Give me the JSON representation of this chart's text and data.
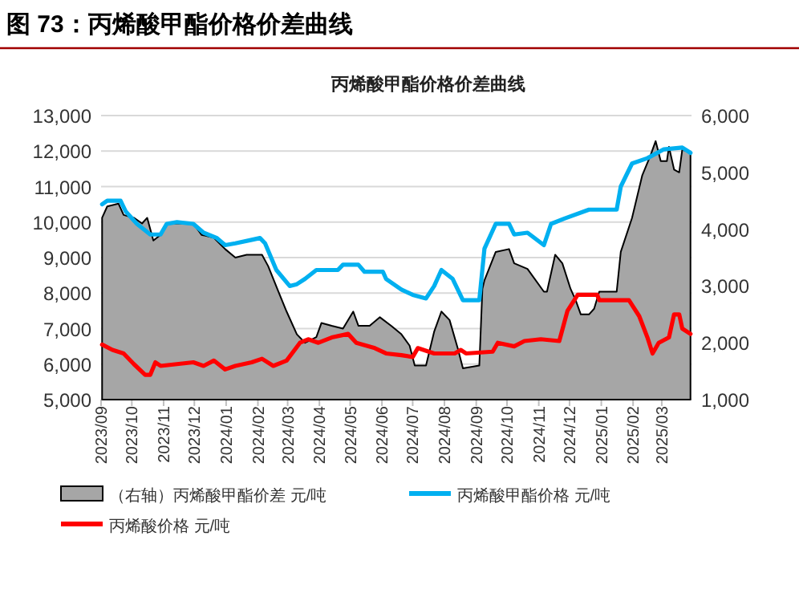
{
  "chart_data": {
    "type": "line",
    "title": "图 73：丙烯酸甲酯价格价差曲线",
    "subtitle": "丙烯酸甲酯价格价差曲线",
    "xlim": [
      "2023-09-01",
      "2025-03-30"
    ],
    "xticks": [
      {
        "value": "2023-09",
        "label": "2023/09"
      },
      {
        "value": "2023-10",
        "label": "2023/10"
      },
      {
        "value": "2023-11",
        "label": "2023/11"
      },
      {
        "value": "2023-12",
        "label": "2023/12"
      },
      {
        "value": "2024-01",
        "label": "2024/01"
      },
      {
        "value": "2024-02",
        "label": "2024/02"
      },
      {
        "value": "2024-03",
        "label": "2024/03"
      },
      {
        "value": "2024-04",
        "label": "2024/04"
      },
      {
        "value": "2024-05",
        "label": "2024/05"
      },
      {
        "value": "2024-06",
        "label": "2024/06"
      },
      {
        "value": "2024-07",
        "label": "2024/07"
      },
      {
        "value": "2024-08",
        "label": "2024/08"
      },
      {
        "value": "2024-09",
        "label": "2024/09"
      },
      {
        "value": "2024-10",
        "label": "2024/10"
      },
      {
        "value": "2024-11",
        "label": "2024/11"
      },
      {
        "value": "2024-12",
        "label": "2024/12"
      },
      {
        "value": "2025-01",
        "label": "2025/01"
      },
      {
        "value": "2025-02",
        "label": "2025/02"
      },
      {
        "value": "2025-03",
        "label": "2025/03"
      }
    ],
    "ylim": [
      5000,
      13000
    ],
    "yticks": [
      {
        "value": 5000,
        "label": "5,000"
      },
      {
        "value": 6000,
        "label": "6,000"
      },
      {
        "value": 7000,
        "label": "7,000"
      },
      {
        "value": 8000,
        "label": "8,000"
      },
      {
        "value": 9000,
        "label": "9,000"
      },
      {
        "value": 10000,
        "label": "10,000"
      },
      {
        "value": 11000,
        "label": "11,000"
      },
      {
        "value": 12000,
        "label": "12,000"
      },
      {
        "value": 13000,
        "label": "13,000"
      }
    ],
    "y2lim": [
      1000,
      6000
    ],
    "y2ticks": [
      {
        "value": 1000,
        "label": "1,000"
      },
      {
        "value": 2000,
        "label": "2,000"
      },
      {
        "value": 3000,
        "label": "3,000"
      },
      {
        "value": 4000,
        "label": "4,000"
      },
      {
        "value": 5000,
        "label": "5,000"
      },
      {
        "value": 6000,
        "label": "6,000"
      }
    ],
    "grid": "y",
    "legend": "bottom",
    "series": [
      {
        "name": "（右轴）丙烯酸甲酯价差 元/吨",
        "type": "area",
        "axis": "y2",
        "color": "#a6a6a6",
        "x": [
          "2023-09-02",
          "2023-09-07",
          "2023-09-18",
          "2023-09-23",
          "2023-10-03",
          "2023-10-11",
          "2023-10-16",
          "2023-10-22",
          "2023-10-29",
          "2023-11-04",
          "2023-11-14",
          "2023-11-30",
          "2023-12-08",
          "2023-12-20",
          "2023-12-31",
          "2024-01-10",
          "2024-01-21",
          "2024-02-05",
          "2024-02-11",
          "2024-02-21",
          "2024-02-29",
          "2024-03-10",
          "2024-03-18",
          "2024-03-29",
          "2024-04-03",
          "2024-04-13",
          "2024-04-24",
          "2024-05-04",
          "2024-05-09",
          "2024-05-20",
          "2024-05-30",
          "2024-06-10",
          "2024-06-20",
          "2024-06-28",
          "2024-07-03",
          "2024-07-14",
          "2024-07-22",
          "2024-07-29",
          "2024-08-06",
          "2024-08-14",
          "2024-08-19",
          "2024-09-04",
          "2024-09-07",
          "2024-09-09",
          "2024-09-20",
          "2024-10-03",
          "2024-10-08",
          "2024-10-21",
          "2024-11-06",
          "2024-11-09",
          "2024-11-17",
          "2024-11-24",
          "2024-12-02",
          "2024-12-07",
          "2024-12-12",
          "2024-12-20",
          "2024-12-25",
          "2024-12-30",
          "2025-01-16",
          "2025-01-20",
          "2025-01-31",
          "2025-02-10",
          "2025-02-18",
          "2025-02-23",
          "2025-02-28",
          "2025-03-06",
          "2025-03-08",
          "2025-03-13",
          "2025-03-18",
          "2025-03-21",
          "2025-03-29"
        ],
        "values": [
          4200,
          4400,
          4450,
          4250,
          4200,
          4100,
          4200,
          3800,
          3900,
          4100,
          4100,
          4100,
          3900,
          3850,
          3650,
          3500,
          3550,
          3550,
          3350,
          2900,
          2550,
          2150,
          2000,
          2100,
          2350,
          2300,
          2250,
          2550,
          2300,
          2300,
          2450,
          2300,
          2150,
          1950,
          1600,
          1600,
          2200,
          2550,
          2400,
          1900,
          1550,
          1600,
          2950,
          3100,
          3600,
          3650,
          3400,
          3300,
          2900,
          2900,
          3550,
          3400,
          2950,
          2750,
          2500,
          2500,
          2600,
          2900,
          2900,
          3600,
          4200,
          4950,
          5300,
          5550,
          5200,
          5200,
          5450,
          5050,
          5000,
          5400,
          5350
        ]
      },
      {
        "name": "丙烯酸甲酯价格 元/吨",
        "color": "#00b0f0",
        "x": [
          "2023-09-02",
          "2023-09-07",
          "2023-09-20",
          "2023-09-25",
          "2023-10-06",
          "2023-10-19",
          "2023-10-29",
          "2023-11-04",
          "2023-11-14",
          "2023-11-30",
          "2023-12-10",
          "2023-12-23",
          "2023-12-31",
          "2024-01-10",
          "2024-01-26",
          "2024-02-03",
          "2024-02-08",
          "2024-02-19",
          "2024-03-03",
          "2024-03-10",
          "2024-03-18",
          "2024-03-29",
          "2024-04-19",
          "2024-04-24",
          "2024-05-09",
          "2024-05-15",
          "2024-06-02",
          "2024-06-05",
          "2024-06-20",
          "2024-07-01",
          "2024-07-14",
          "2024-07-22",
          "2024-07-29",
          "2024-08-09",
          "2024-08-19",
          "2024-09-04",
          "2024-09-09",
          "2024-09-20",
          "2024-10-03",
          "2024-10-08",
          "2024-10-21",
          "2024-11-06",
          "2024-11-13",
          "2024-11-26",
          "2024-12-20",
          "2025-01-16",
          "2025-01-20",
          "2025-01-31",
          "2025-02-15",
          "2025-03-03",
          "2025-03-21",
          "2025-03-29"
        ],
        "values": [
          10500,
          10600,
          10600,
          10300,
          9950,
          9650,
          9650,
          9950,
          10000,
          9950,
          9700,
          9550,
          9350,
          9400,
          9500,
          9550,
          9400,
          8650,
          8200,
          8250,
          8400,
          8650,
          8650,
          8800,
          8800,
          8600,
          8600,
          8400,
          8100,
          7950,
          7850,
          8200,
          8650,
          8400,
          7800,
          7800,
          9250,
          9950,
          9950,
          9650,
          9700,
          9350,
          9950,
          10100,
          10350,
          10350,
          11000,
          11650,
          11800,
          12050,
          12100,
          11950
        ]
      },
      {
        "name": "丙烯酸价格 元/吨",
        "color": "#ff0000",
        "x": [
          "2023-09-02",
          "2023-09-12",
          "2023-09-23",
          "2023-10-03",
          "2023-10-14",
          "2023-10-19",
          "2023-10-24",
          "2023-10-29",
          "2023-11-14",
          "2023-11-30",
          "2023-12-10",
          "2023-12-20",
          "2023-12-31",
          "2024-01-10",
          "2024-01-26",
          "2024-02-05",
          "2024-02-16",
          "2024-02-29",
          "2024-03-13",
          "2024-03-21",
          "2024-03-31",
          "2024-04-13",
          "2024-04-29",
          "2024-05-07",
          "2024-05-25",
          "2024-06-05",
          "2024-06-20",
          "2024-07-01",
          "2024-07-06",
          "2024-07-22",
          "2024-08-11",
          "2024-08-17",
          "2024-08-22",
          "2024-09-17",
          "2024-09-22",
          "2024-10-08",
          "2024-10-18",
          "2024-11-03",
          "2024-11-21",
          "2024-11-29",
          "2024-12-09",
          "2024-12-28",
          "2024-12-30",
          "2025-01-28",
          "2025-02-07",
          "2025-02-15",
          "2025-02-20",
          "2025-02-26",
          "2025-03-08",
          "2025-03-13",
          "2025-03-18",
          "2025-03-21",
          "2025-03-29"
        ],
        "values": [
          6550,
          6400,
          6300,
          6000,
          5700,
          5700,
          6050,
          5950,
          6000,
          6050,
          5950,
          6100,
          5850,
          5950,
          6050,
          6150,
          5950,
          6100,
          6600,
          6700,
          6600,
          6750,
          6850,
          6600,
          6450,
          6300,
          6250,
          6200,
          6450,
          6300,
          6300,
          6400,
          6300,
          6350,
          6600,
          6500,
          6650,
          6700,
          6650,
          7500,
          7950,
          7950,
          7800,
          7800,
          7350,
          6750,
          6300,
          6600,
          6750,
          7400,
          7400,
          7000,
          6850
        ]
      }
    ]
  }
}
